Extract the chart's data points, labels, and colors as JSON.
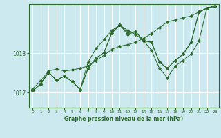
{
  "background_color": "#cce9f0",
  "grid_color": "#ffffff",
  "line_color": "#2d6a2d",
  "title": "Graphe pression niveau de la mer (hPa)",
  "xlim": [
    -0.5,
    23.5
  ],
  "ylim": [
    1016.62,
    1019.25
  ],
  "yticks": [
    1017,
    1018
  ],
  "xticks": [
    0,
    1,
    2,
    3,
    4,
    5,
    6,
    7,
    8,
    9,
    10,
    11,
    12,
    13,
    14,
    15,
    16,
    17,
    18,
    19,
    20,
    21,
    22,
    23
  ],
  "series": [
    [
      1017.1,
      1017.3,
      1017.55,
      1017.6,
      1017.55,
      1017.58,
      1017.62,
      1017.68,
      1017.82,
      1017.95,
      1018.1,
      1018.18,
      1018.22,
      1018.28,
      1018.38,
      1018.5,
      1018.65,
      1018.8,
      1018.85,
      1018.9,
      1018.95,
      1019.05,
      1019.15,
      1019.2
    ],
    [
      1017.05,
      1017.22,
      1017.52,
      1017.32,
      1017.42,
      1017.28,
      1017.08,
      1017.78,
      1018.12,
      1018.35,
      1018.58,
      1018.72,
      1018.58,
      1018.48,
      1018.32,
      1018.28,
      1017.78,
      1017.62,
      1017.82,
      1017.98,
      1018.28,
      1019.05,
      1019.15,
      1019.2
    ],
    [
      1017.05,
      1017.22,
      1017.52,
      1017.32,
      1017.42,
      1017.28,
      1017.08,
      1017.62,
      1017.88,
      1018.02,
      1018.52,
      1018.72,
      1018.52,
      1018.55,
      1018.32,
      1018.28,
      1017.78,
      1017.62,
      1017.82,
      1017.98,
      1018.28,
      1019.05,
      1019.15,
      1019.2
    ],
    [
      1017.05,
      1017.22,
      1017.52,
      1017.32,
      1017.42,
      1017.28,
      1017.08,
      1017.62,
      1017.88,
      1018.02,
      1018.52,
      1018.72,
      1018.48,
      1018.55,
      1018.32,
      1018.08,
      1017.62,
      1017.38,
      1017.68,
      1017.82,
      1017.98,
      1018.32,
      1019.15,
      1019.2
    ]
  ]
}
